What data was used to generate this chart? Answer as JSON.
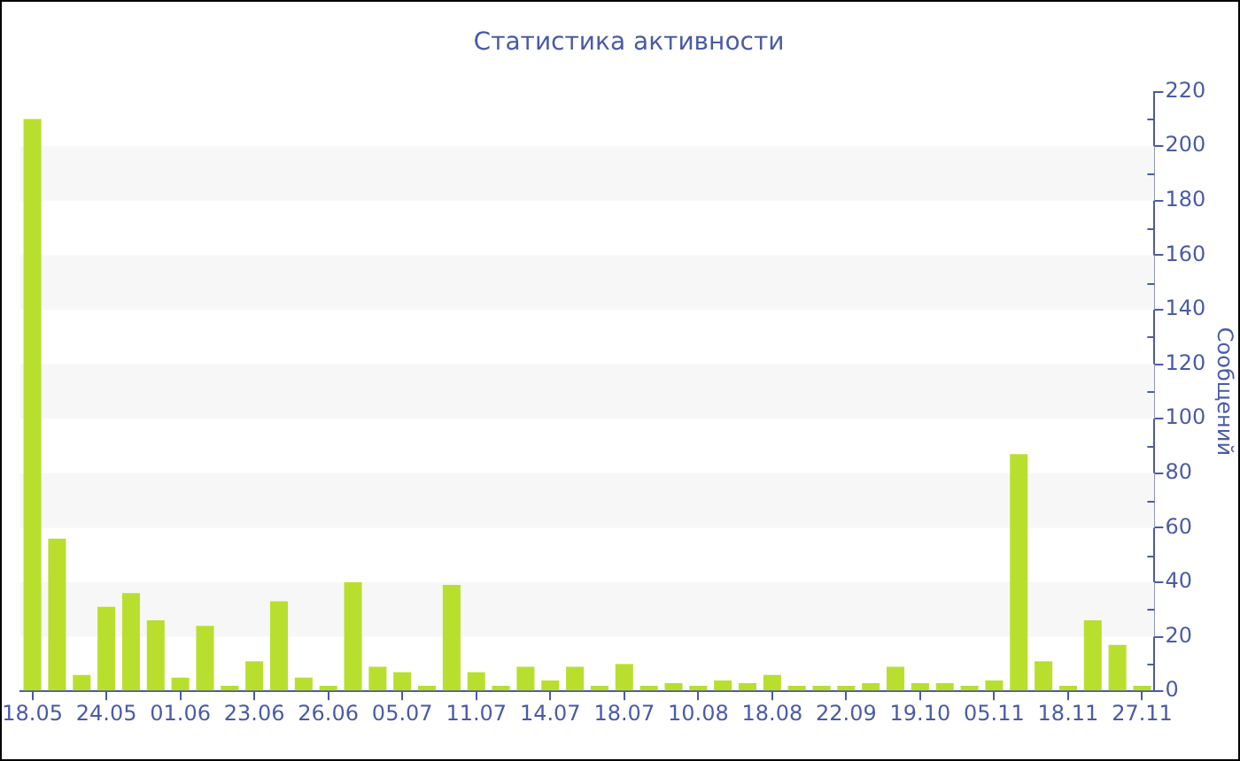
{
  "chart_data": {
    "type": "bar",
    "title": "Статистика активности",
    "ylabel": "Сообщений",
    "categories": [
      "18.05",
      null,
      null,
      "24.05",
      null,
      null,
      "01.06",
      null,
      null,
      "23.06",
      null,
      null,
      "26.06",
      null,
      null,
      "05.07",
      null,
      null,
      "11.07",
      null,
      null,
      "14.07",
      null,
      null,
      "18.07",
      null,
      null,
      "10.08",
      null,
      null,
      "18.08",
      null,
      null,
      "22.09",
      null,
      null,
      "19.10",
      null,
      null,
      "05.11",
      null,
      null,
      "18.11",
      null,
      null,
      "27.11"
    ],
    "values": [
      210,
      56,
      6,
      31,
      36,
      26,
      5,
      24,
      2,
      11,
      33,
      5,
      2,
      40,
      9,
      7,
      2,
      39,
      7,
      2,
      9,
      4,
      9,
      2,
      10,
      2,
      3,
      2,
      4,
      3,
      6,
      2,
      2,
      2,
      3,
      9,
      3,
      3,
      2,
      4,
      87,
      11,
      2,
      26,
      17,
      2
    ],
    "color": "#b9df2e",
    "ylim": [
      0,
      220
    ],
    "yticks": [
      0,
      {
        "value": 10,
        "label": null
      },
      20,
      {
        "value": 30,
        "label": null
      },
      40,
      {
        "value": 50,
        "label": null
      },
      60,
      {
        "value": 70,
        "label": null
      },
      80,
      {
        "value": 90,
        "label": null
      },
      100,
      {
        "value": 110,
        "label": null
      },
      120,
      {
        "value": 130,
        "label": null
      },
      140,
      {
        "value": 150,
        "label": null
      },
      160,
      {
        "value": 170,
        "label": null
      },
      180,
      {
        "value": 190,
        "label": null
      },
      200,
      {
        "value": 210,
        "label": null
      },
      220
    ],
    "bands": [
      {
        "axis": "y",
        "from": 20,
        "to": 40,
        "color": "#f7f7f7"
      },
      {
        "axis": "y",
        "from": 60,
        "to": 80,
        "color": "#f7f7f7"
      },
      {
        "axis": "y",
        "from": 100,
        "to": 120,
        "color": "#f7f7f7"
      },
      {
        "axis": "y",
        "from": 140,
        "to": 160,
        "color": "#f7f7f7"
      },
      {
        "axis": "y",
        "from": 180,
        "to": 200,
        "color": "#f7f7f7"
      }
    ]
  }
}
